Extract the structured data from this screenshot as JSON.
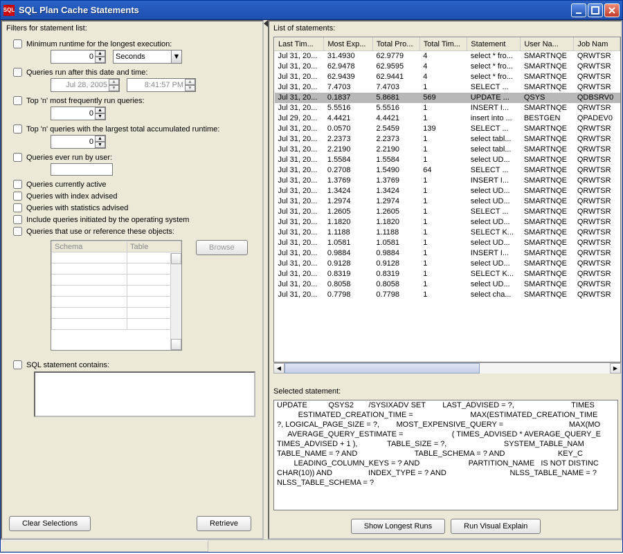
{
  "window": {
    "title": "SQL Plan Cache Statements"
  },
  "filters": {
    "section_label": "Filters for statement list:",
    "min_runtime": {
      "label": "Minimum runtime for the longest execution:",
      "value": "0",
      "unit": "Seconds"
    },
    "after_date": {
      "label": "Queries run after this date and time:",
      "date": "Jul 28, 2005",
      "time": "8:41:57 PM"
    },
    "top_freq": {
      "label": "Top 'n' most frequently run queries:",
      "value": "0"
    },
    "top_total": {
      "label": "Top 'n' queries with the largest total accumulated runtime:",
      "value": "0"
    },
    "by_user": {
      "label": "Queries ever run by user:",
      "value": ""
    },
    "currently_active": "Queries currently active",
    "index_advised": "Queries with index advised",
    "stats_advised": "Queries with statistics advised",
    "include_os": "Include queries initiated by the operating system",
    "reference_objects": "Queries that use or reference these objects:",
    "schema_th": "Schema",
    "table_th": "Table",
    "browse_btn": "Browse",
    "sql_contains": "SQL statement contains:",
    "clear_btn": "Clear Selections",
    "retrieve_btn": "Retrieve"
  },
  "results": {
    "section_label": "List of statements:",
    "columns": [
      "Last Tim...",
      "Most Exp...",
      "Total Pro...",
      "Total Tim...",
      "Statement",
      "User Na...",
      "Job Nam"
    ],
    "rows": [
      [
        "Jul 31, 20...",
        "31.4930",
        "62.9779",
        "4",
        "select * fro...",
        "SMARTNQE",
        "QRWTSR"
      ],
      [
        "Jul 31, 20...",
        "62.9478",
        "62.9595",
        "4",
        "select * fro...",
        "SMARTNQE",
        "QRWTSR"
      ],
      [
        "Jul 31, 20...",
        "62.9439",
        "62.9441",
        "4",
        "select * fro...",
        "SMARTNQE",
        "QRWTSR"
      ],
      [
        "Jul 31, 20...",
        "7.4703",
        "7.4703",
        "1",
        "SELECT ...",
        "SMARTNQE",
        "QRWTSR"
      ],
      [
        "Jul 31, 20...",
        "0.1837",
        "5.8681",
        "569",
        "UPDATE  ...",
        "QSYS",
        "QDBSRV0"
      ],
      [
        "Jul 31, 20...",
        "5.5516",
        "5.5516",
        "1",
        "INSERT I...",
        "SMARTNQE",
        "QRWTSR"
      ],
      [
        "Jul 29, 20...",
        "4.4421",
        "4.4421",
        "1",
        "insert into ...",
        "BESTGEN",
        "QPADEV0"
      ],
      [
        "Jul 31, 20...",
        "0.0570",
        "2.5459",
        "139",
        "SELECT ...",
        "SMARTNQE",
        "QRWTSR"
      ],
      [
        "Jul 31, 20...",
        "2.2373",
        "2.2373",
        "1",
        "select tabl...",
        "SMARTNQE",
        "QRWTSR"
      ],
      [
        "Jul 31, 20...",
        "2.2190",
        "2.2190",
        "1",
        "select tabl...",
        "SMARTNQE",
        "QRWTSR"
      ],
      [
        "Jul 31, 20...",
        "1.5584",
        "1.5584",
        "1",
        "select UD...",
        "SMARTNQE",
        "QRWTSR"
      ],
      [
        "Jul 31, 20...",
        "0.2708",
        "1.5490",
        "64",
        "SELECT ...",
        "SMARTNQE",
        "QRWTSR"
      ],
      [
        "Jul 31, 20...",
        "1.3769",
        "1.3769",
        "1",
        "INSERT I...",
        "SMARTNQE",
        "QRWTSR"
      ],
      [
        "Jul 31, 20...",
        "1.3424",
        "1.3424",
        "1",
        "select UD...",
        "SMARTNQE",
        "QRWTSR"
      ],
      [
        "Jul 31, 20...",
        "1.2974",
        "1.2974",
        "1",
        "select UD...",
        "SMARTNQE",
        "QRWTSR"
      ],
      [
        "Jul 31, 20...",
        "1.2605",
        "1.2605",
        "1",
        "SELECT ...",
        "SMARTNQE",
        "QRWTSR"
      ],
      [
        "Jul 31, 20...",
        "1.1820",
        "1.1820",
        "1",
        "select UD...",
        "SMARTNQE",
        "QRWTSR"
      ],
      [
        "Jul 31, 20...",
        "1.1188",
        "1.1188",
        "1",
        "SELECT K...",
        "SMARTNQE",
        "QRWTSR"
      ],
      [
        "Jul 31, 20...",
        "1.0581",
        "1.0581",
        "1",
        "select UD...",
        "SMARTNQE",
        "QRWTSR"
      ],
      [
        "Jul 31, 20...",
        "0.9884",
        "0.9884",
        "1",
        "INSERT I...",
        "SMARTNQE",
        "QRWTSR"
      ],
      [
        "Jul 31, 20...",
        "0.9128",
        "0.9128",
        "1",
        "select UD...",
        "SMARTNQE",
        "QRWTSR"
      ],
      [
        "Jul 31, 20...",
        "0.8319",
        "0.8319",
        "1",
        "SELECT K...",
        "SMARTNQE",
        "QRWTSR"
      ],
      [
        "Jul 31, 20...",
        "0.8058",
        "0.8058",
        "1",
        "select UD...",
        "SMARTNQE",
        "QRWTSR"
      ],
      [
        "Jul 31, 20...",
        "0.7798",
        "0.7798",
        "1",
        "select cha...",
        "SMARTNQE",
        "QRWTSR"
      ]
    ],
    "selected_index": 4
  },
  "selected_statement": {
    "label": "Selected statement:",
    "text": "UPDATE          QSYS2       /SYSIXADV SET        LAST_ADVISED = ?,                           TIMES\n          ESTIMATED_CREATION_TIME =                           MAX(ESTIMATED_CREATION_TIME\n?, LOGICAL_PAGE_SIZE = ?,        MOST_EXPENSIVE_QUERY =                               MAX(MO\n     AVERAGE_QUERY_ESTIMATE =                       ( TIMES_ADVISED * AVERAGE_QUERY_E\nTIMES_ADVISED + 1 ),              TABLE_SIZE = ?,                           SYSTEM_TABLE_NAM\nTABLE_NAME = ? AND                           TABLE_SCHEMA = ? AND                         KEY_C\n        LEADING_COLUMN_KEYS = ? AND                       PARTITION_NAME   IS NOT DISTINC\nCHAR(10)) AND                 INDEX_TYPE = ? AND                              NLSS_TABLE_NAME = ?\nNLSS_TABLE_SCHEMA = ?"
  },
  "buttons": {
    "show_longest": "Show Longest Runs",
    "visual_explain": "Run Visual Explain"
  },
  "colors": {
    "titlebar_start": "#2a62c5",
    "titlebar_end": "#1d4fb0",
    "panel_bg": "#ece9d8",
    "selected_row": "#b8b8b8",
    "close_btn": "#c0392b"
  }
}
